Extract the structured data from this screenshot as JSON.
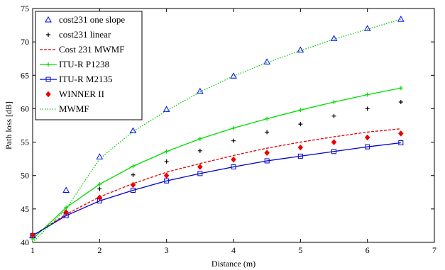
{
  "chart_data": {
    "type": "line",
    "xlabel": "Distance (m)",
    "ylabel": "Path loss [dB]",
    "xlim": [
      1,
      7
    ],
    "ylim": [
      40,
      75
    ],
    "xticks": [
      1,
      2,
      3,
      4,
      5,
      6,
      7
    ],
    "yticks": [
      40,
      45,
      50,
      55,
      60,
      65,
      70,
      75
    ],
    "grid": false,
    "legend_position": "top-left",
    "x": [
      1,
      1.5,
      2,
      2.5,
      3,
      3.5,
      4,
      4.5,
      5,
      5.5,
      6,
      6.5
    ],
    "series": [
      {
        "name": "cost231 one slope",
        "style": "markers",
        "marker": "triangle",
        "color": "#0000ff",
        "values": [
          41.0,
          47.8,
          52.8,
          56.7,
          59.9,
          62.6,
          64.9,
          67.0,
          68.8,
          70.5,
          72.0,
          73.4
        ]
      },
      {
        "name": "cost231 linear",
        "style": "markers",
        "marker": "plus",
        "color": "#000000",
        "values": [
          41.0,
          44.5,
          48.0,
          50.1,
          52.1,
          53.7,
          55.2,
          56.5,
          57.7,
          58.9,
          60.0,
          61.0
        ]
      },
      {
        "name": "Cost 231 MWMF",
        "style": "dashed",
        "marker": "none",
        "color": "#e00000",
        "values": [
          41.0,
          44.2,
          46.8,
          48.8,
          50.5,
          51.8,
          53.0,
          54.1,
          55.0,
          55.8,
          56.5,
          57.0
        ]
      },
      {
        "name": "ITU-R P1238",
        "style": "solid",
        "marker": "plus",
        "color": "#00dd00",
        "values": [
          40.5,
          45.2,
          48.7,
          51.4,
          53.6,
          55.5,
          57.1,
          58.5,
          59.8,
          61.0,
          62.1,
          63.1
        ]
      },
      {
        "name": "ITU-R M2135",
        "style": "solid",
        "marker": "square",
        "color": "#0000cc",
        "values": [
          41.0,
          44.0,
          46.2,
          47.8,
          49.2,
          50.3,
          51.3,
          52.2,
          52.9,
          53.6,
          54.3,
          54.9
        ]
      },
      {
        "name": "WINNER II",
        "style": "markers",
        "marker": "diamond",
        "color": "#ee0000",
        "values": [
          41.1,
          44.5,
          46.7,
          48.6,
          50.0,
          51.3,
          52.4,
          53.4,
          54.2,
          55.0,
          55.7,
          56.3
        ]
      },
      {
        "name": "MWMF",
        "style": "dotted",
        "marker": "none",
        "color": "#00cc00",
        "values": [
          40.0,
          45.0,
          52.5,
          56.6,
          59.7,
          62.5,
          64.9,
          66.9,
          68.7,
          70.4,
          71.9,
          73.4
        ]
      }
    ]
  }
}
